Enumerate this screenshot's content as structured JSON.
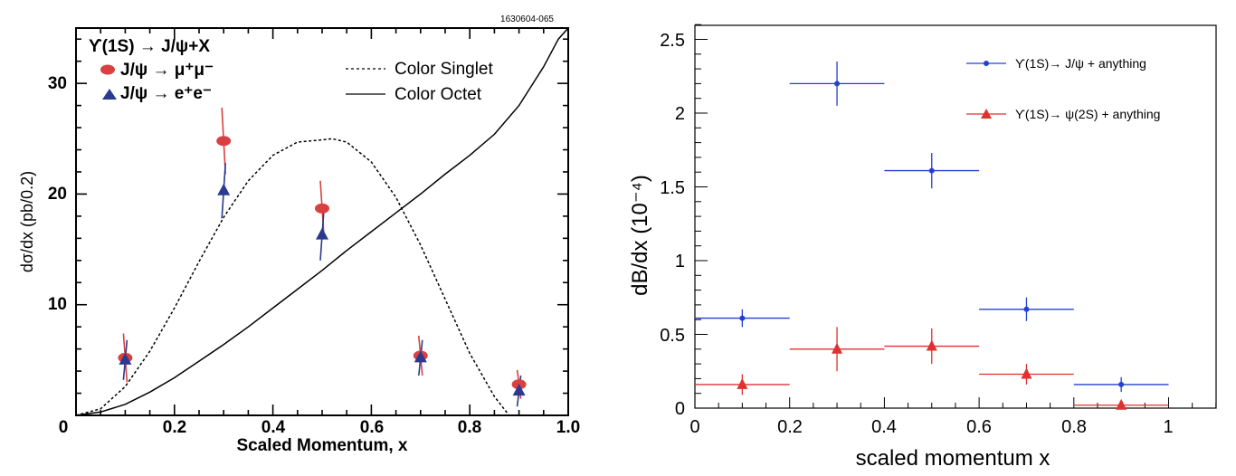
{
  "chart_data": [
    {
      "type": "scatter",
      "id_label": "1630604-065",
      "xlabel": "Scaled Momentum, x",
      "ylabel": "dσ/dx (pb/0.2)",
      "xlim": [
        0,
        1.0
      ],
      "ylim": [
        0,
        35
      ],
      "x_ticks": [
        "0",
        "0.2",
        "0.4",
        "0.6",
        "0.8",
        "1.0"
      ],
      "y_ticks": [
        "10",
        "20",
        "30"
      ],
      "process_title": "ϒ(1S) → J/ψ+X",
      "series": [
        {
          "name": "J/ψ → μ⁺μ⁻",
          "marker": "ellipse",
          "color": "#d94141",
          "x": [
            0.1,
            0.3,
            0.5,
            0.7,
            0.9
          ],
          "y": [
            5.2,
            24.8,
            18.7,
            5.4,
            2.8
          ],
          "yerr": [
            2.2,
            3.0,
            2.5,
            1.8,
            1.3
          ]
        },
        {
          "name": "J/ψ → e⁺e⁻",
          "marker": "triangle",
          "color": "#2b3a8f",
          "x": [
            0.1,
            0.3,
            0.5,
            0.7,
            0.9
          ],
          "y": [
            5.0,
            20.3,
            16.3,
            5.2,
            2.2
          ],
          "yerr": [
            1.8,
            2.5,
            2.3,
            1.6,
            1.4
          ]
        }
      ],
      "curves": [
        {
          "name": "Color Singlet",
          "style": "dashed",
          "x": [
            0,
            0.05,
            0.1,
            0.15,
            0.2,
            0.25,
            0.3,
            0.35,
            0.4,
            0.45,
            0.5,
            0.52,
            0.55,
            0.6,
            0.65,
            0.7,
            0.75,
            0.8,
            0.85,
            0.88
          ],
          "y": [
            0,
            0.6,
            2.6,
            5.8,
            9.7,
            13.9,
            17.9,
            21.2,
            23.5,
            24.7,
            24.9,
            25.0,
            24.7,
            22.9,
            19.7,
            15.4,
            10.5,
            5.6,
            1.7,
            0
          ]
        },
        {
          "name": "Color Octet",
          "style": "solid",
          "x": [
            0,
            0.05,
            0.1,
            0.15,
            0.2,
            0.25,
            0.3,
            0.35,
            0.4,
            0.45,
            0.5,
            0.55,
            0.6,
            0.65,
            0.7,
            0.75,
            0.8,
            0.85,
            0.9,
            0.95,
            0.98,
            1.0
          ],
          "y": [
            0,
            0.3,
            1.0,
            2.1,
            3.4,
            4.9,
            6.4,
            8.0,
            9.7,
            11.4,
            13.1,
            14.9,
            16.6,
            18.3,
            20.0,
            21.8,
            23.5,
            25.4,
            28.0,
            31.5,
            34.0,
            35.0
          ]
        }
      ]
    },
    {
      "type": "scatter",
      "xlabel": "scaled momentum x",
      "ylabel": "dB/dx (10⁻⁴)",
      "xlim": [
        0,
        1.1
      ],
      "ylim": [
        0,
        2.6
      ],
      "x_ticks": [
        "0",
        "0.2",
        "0.4",
        "0.6",
        "0.8",
        "1"
      ],
      "y_ticks": [
        "0",
        "0.5",
        "1",
        "1.5",
        "2",
        "2.5"
      ],
      "series": [
        {
          "name": "ϒ(1S)→ J/ψ + anything",
          "marker": "circle",
          "color": "#2340d0",
          "x": [
            0.1,
            0.3,
            0.5,
            0.7,
            0.9
          ],
          "y": [
            0.61,
            2.2,
            1.61,
            0.67,
            0.16
          ],
          "yerr": [
            0.06,
            0.15,
            0.12,
            0.08,
            0.05
          ],
          "xerr": [
            0.1,
            0.1,
            0.1,
            0.1,
            0.1
          ]
        },
        {
          "name": "ϒ(1S)→ ψ(2S) + anything",
          "marker": "triangle",
          "color": "#e03030",
          "x": [
            0.1,
            0.3,
            0.5,
            0.7,
            0.9
          ],
          "y": [
            0.16,
            0.4,
            0.42,
            0.23,
            0.02
          ],
          "yerr": [
            0.07,
            0.15,
            0.12,
            0.07,
            0.03
          ],
          "xerr": [
            0.1,
            0.1,
            0.1,
            0.1,
            0.1
          ]
        }
      ]
    }
  ]
}
